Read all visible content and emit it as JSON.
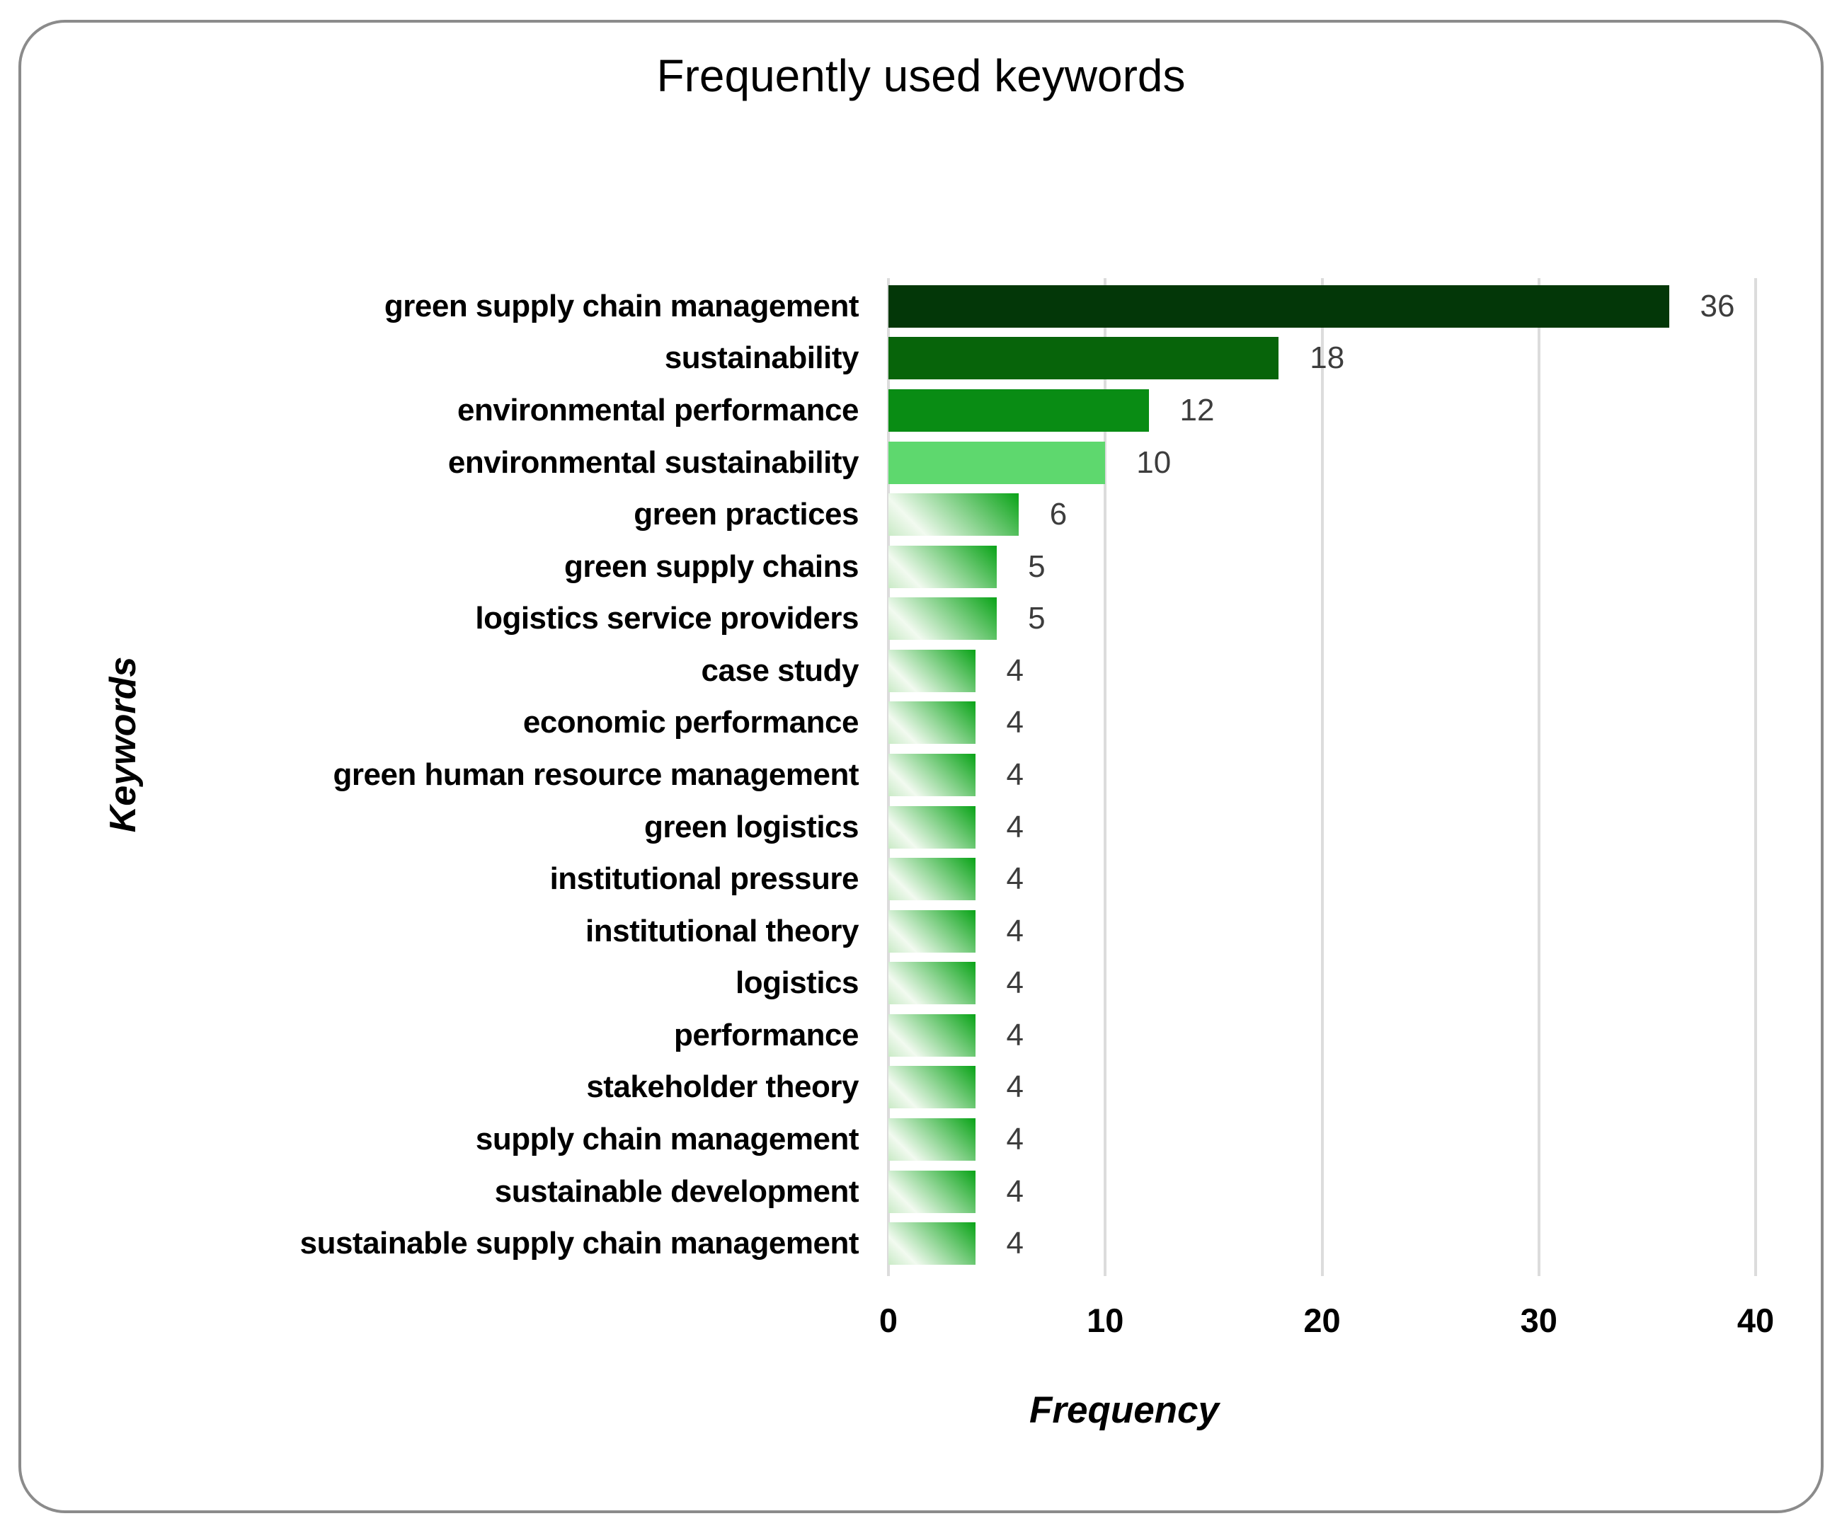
{
  "chart_data": {
    "type": "bar",
    "orientation": "horizontal",
    "title": "Frequently used keywords",
    "xlabel": "Frequency",
    "ylabel": "Keywords",
    "xlim": [
      0,
      40
    ],
    "xticks": [
      0,
      10,
      20,
      30,
      40
    ],
    "grid": "vertical-gridlines-on",
    "legend": "none",
    "categories": [
      "green supply chain management",
      "sustainability",
      "environmental performance",
      "environmental sustainability",
      "green practices",
      "green supply chains",
      "logistics service providers",
      "case study",
      "economic performance",
      "green human resource management",
      "green logistics",
      "institutional pressure",
      "institutional theory",
      "logistics",
      "performance",
      "stakeholder theory",
      "supply chain management",
      "sustainable development",
      "sustainable supply chain management"
    ],
    "values": [
      36,
      18,
      12,
      10,
      6,
      5,
      5,
      4,
      4,
      4,
      4,
      4,
      4,
      4,
      4,
      4,
      4,
      4,
      4
    ],
    "bar_colors": [
      "#033708",
      "#07640A",
      "#098C14",
      "#5ED86E",
      "gradient",
      "gradient",
      "gradient",
      "gradient",
      "gradient",
      "gradient",
      "gradient",
      "gradient",
      "gradient",
      "gradient",
      "gradient",
      "gradient",
      "gradient",
      "gradient",
      "gradient"
    ],
    "gradient_stops": [
      "#C9EAC6",
      "#F2FAF0",
      "#09A317"
    ],
    "colors": {
      "gridline": "#DCDCDC",
      "value_label": "#3D3D3D",
      "text": "#000000",
      "card_border": "#8B8B8B",
      "background": "#FFFFFF"
    }
  }
}
